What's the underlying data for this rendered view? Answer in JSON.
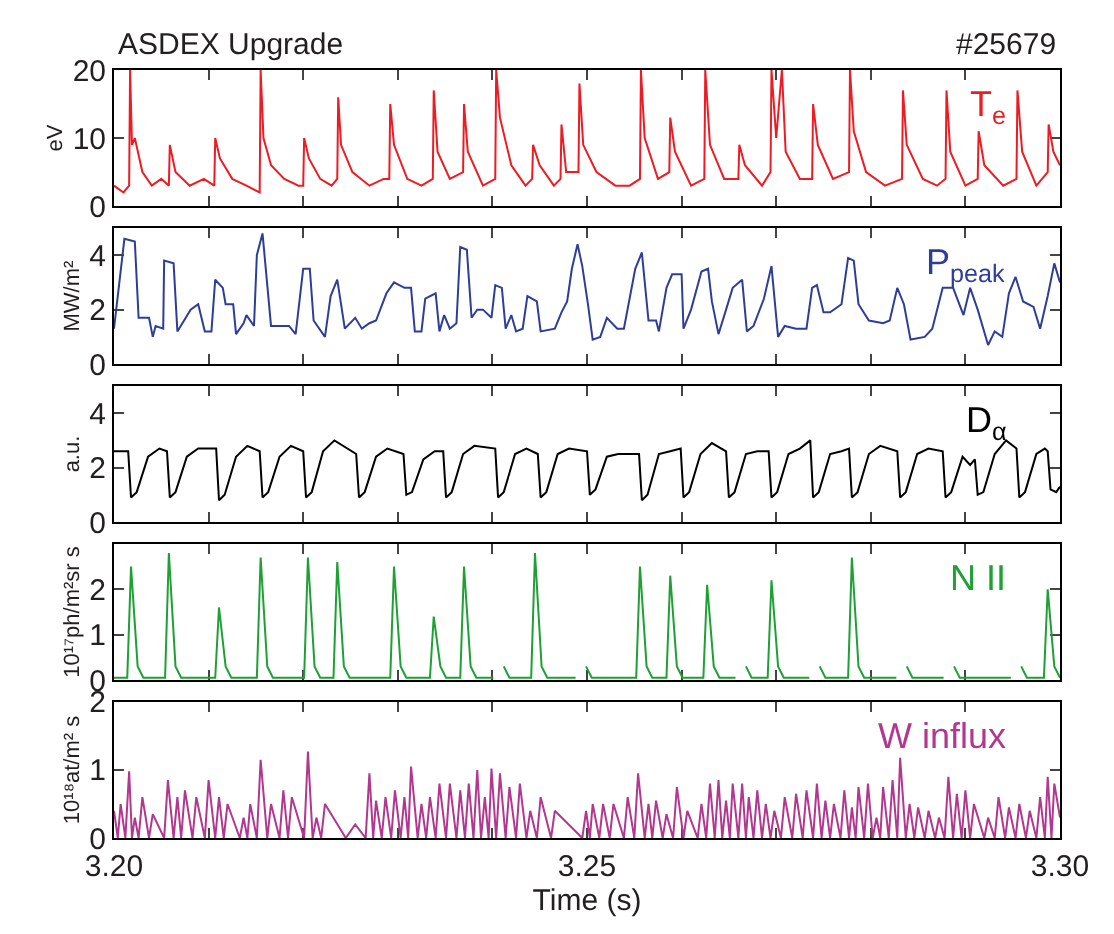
{
  "chart_data": [
    {
      "type": "line",
      "title": "ASDEX Upgrade",
      "annotations": [
        "#25679"
      ],
      "ylabel": "eV",
      "xlim": [
        3.2,
        3.3
      ],
      "ylim": [
        0,
        20
      ],
      "yticks": [
        0,
        10,
        20
      ],
      "tick_labels": "y",
      "xticks": [
        3.2,
        {
          "value": 3.21,
          "label": null
        },
        {
          "value": 3.22,
          "label": null
        },
        {
          "value": 3.23,
          "label": null
        },
        {
          "value": 3.24,
          "label": null
        },
        3.25,
        {
          "value": 3.26,
          "label": null
        },
        {
          "value": 3.27,
          "label": null
        },
        {
          "value": 3.28,
          "label": null
        },
        {
          "value": 3.29,
          "label": null
        },
        3.3
      ],
      "series": [
        {
          "name": "T$_{e}$",
          "color": "#ed1c24",
          "x": [
            3.2,
            3.201,
            3.2016,
            3.2017,
            3.2019,
            3.2022,
            3.203,
            3.204,
            3.205,
            3.2058,
            3.2059,
            3.2065,
            3.208,
            3.2095,
            3.2106,
            3.2107,
            3.2112,
            3.2125,
            3.214,
            3.2154,
            3.2155,
            3.2158,
            3.2166,
            3.218,
            3.2195,
            3.22,
            3.2201,
            3.2206,
            3.2218,
            3.223,
            3.2236,
            3.2237,
            3.224,
            3.2252,
            3.227,
            3.2285,
            3.2291,
            3.2292,
            3.2296,
            3.231,
            3.2325,
            3.2337,
            3.2338,
            3.2342,
            3.2355,
            3.2369,
            3.237,
            3.2374,
            3.239,
            3.2403,
            3.2404,
            3.2408,
            3.242,
            3.2435,
            3.2442,
            3.2443,
            3.245,
            3.2465,
            3.2472,
            3.2473,
            3.2478,
            3.2491,
            3.2492,
            3.2496,
            3.251,
            3.253,
            3.2545,
            3.2556,
            3.2557,
            3.2561,
            3.2575,
            3.2587,
            3.2588,
            3.2593,
            3.261,
            3.2624,
            3.2625,
            3.263,
            3.2645,
            3.266,
            3.2661,
            3.2667,
            3.2685,
            3.2694,
            3.2695,
            3.27,
            3.2706,
            3.271,
            3.2725,
            3.2738,
            3.2739,
            3.2744,
            3.276,
            3.2777,
            3.2778,
            3.2782,
            3.2795,
            3.2815,
            3.2833,
            3.2834,
            3.2838,
            3.2855,
            3.287,
            3.2879,
            3.288,
            3.2884,
            3.29,
            3.2913,
            3.2914,
            3.292,
            3.294,
            3.2954,
            3.2955,
            3.296,
            3.2975,
            3.2987,
            3.2988,
            3.2993,
            3.3
          ],
          "values": [
            3,
            2,
            3,
            20,
            9,
            10,
            5,
            3,
            4,
            3,
            9,
            5,
            3,
            4,
            3,
            10,
            7,
            4,
            3,
            2,
            20,
            10,
            6,
            4,
            3,
            3,
            10,
            7,
            4,
            3,
            4,
            16,
            9,
            5,
            3,
            4,
            4,
            15,
            9,
            4,
            3,
            4,
            17,
            8,
            4,
            5,
            15,
            8,
            3,
            4,
            20,
            13,
            6,
            3,
            4,
            9,
            6,
            3,
            4,
            12,
            5,
            5,
            18,
            9,
            5,
            3,
            3,
            4,
            20,
            10,
            4,
            5,
            13,
            8,
            3,
            4,
            20,
            9,
            4,
            4,
            9,
            6,
            3,
            5,
            20,
            10,
            20,
            8,
            4,
            4,
            15,
            9,
            4,
            5,
            20,
            11,
            5,
            3,
            4,
            17,
            9,
            4,
            3,
            4,
            17,
            8,
            3,
            4,
            11,
            6,
            3,
            4,
            17,
            8,
            3,
            5,
            12,
            8,
            6
          ]
        }
      ]
    },
    {
      "type": "line",
      "ylabel": "MW/m²",
      "xlim": [
        3.2,
        3.3
      ],
      "ylim": [
        0,
        5
      ],
      "yticks": [
        0,
        2,
        4
      ],
      "tick_labels": "y",
      "xticks": [
        3.2,
        {
          "value": 3.21,
          "label": null
        },
        {
          "value": 3.22,
          "label": null
        },
        {
          "value": 3.23,
          "label": null
        },
        {
          "value": 3.24,
          "label": null
        },
        3.25,
        {
          "value": 3.26,
          "label": null
        },
        {
          "value": 3.27,
          "label": null
        },
        {
          "value": 3.28,
          "label": null
        },
        {
          "value": 3.29,
          "label": null
        },
        3.3
      ],
      "series": [
        {
          "name": "P$_{peak}$",
          "color": "#2e3d98",
          "x": [
            3.2,
            3.2011,
            3.2022,
            3.2026,
            3.2037,
            3.2041,
            3.2044,
            3.2052,
            3.2053,
            3.2063,
            3.2067,
            3.2081,
            3.2089,
            3.2096,
            3.2103,
            3.2107,
            3.2115,
            3.2118,
            3.2126,
            3.2129,
            3.2137,
            3.214,
            3.2148,
            3.2151,
            3.2157,
            3.2166,
            3.2185,
            3.2192,
            3.22,
            3.2207,
            3.2211,
            3.2223,
            3.2229,
            3.2236,
            3.2244,
            3.2255,
            3.2262,
            3.227,
            3.2277,
            3.2288,
            3.2296,
            3.2307,
            3.2314,
            3.2318,
            3.2325,
            3.2329,
            3.234,
            3.2344,
            3.2349,
            3.2355,
            3.2362,
            3.2366,
            3.2373,
            3.2378,
            3.2384,
            3.239,
            3.2399,
            3.2403,
            3.241,
            3.2414,
            3.242,
            3.2425,
            3.2432,
            3.2437,
            3.2447,
            3.2451,
            3.2466,
            3.2473,
            3.2479,
            3.2484,
            3.249,
            3.2495,
            3.2501,
            3.2506,
            3.2514,
            3.2521,
            3.2532,
            3.2539,
            3.2551,
            3.2558,
            3.2565,
            3.2573,
            3.2576,
            3.2584,
            3.259,
            3.26,
            3.2602,
            3.261,
            3.2621,
            3.2628,
            3.2632,
            3.2639,
            3.2647,
            3.2654,
            3.2664,
            3.2669,
            3.2676,
            3.2687,
            3.2695,
            3.2702,
            3.2709,
            3.2721,
            3.2732,
            3.2738,
            3.2743,
            3.275,
            3.2757,
            3.2769,
            3.2776,
            3.2782,
            3.2787,
            3.2798,
            3.2813,
            3.282,
            3.2828,
            3.2835,
            3.2842,
            3.2857,
            3.2865,
            3.2876,
            3.2887,
            3.2898,
            3.2905,
            3.2913,
            3.2924,
            3.2931,
            3.2939,
            3.2946,
            3.2953,
            3.2961,
            3.2972,
            3.2979,
            3.2987,
            3.2994,
            3.3
          ],
          "values": [
            1.3,
            4.6,
            4.5,
            1.7,
            1.7,
            1.0,
            1.4,
            1.3,
            3.8,
            3.7,
            1.2,
            2.0,
            2.2,
            1.2,
            1.2,
            3.1,
            2.8,
            2.2,
            2.2,
            1.1,
            1.5,
            1.8,
            1.4,
            4.0,
            4.8,
            1.4,
            1.4,
            1.1,
            3.5,
            3.5,
            1.6,
            1.0,
            2.5,
            3.1,
            1.3,
            1.7,
            1.3,
            1.5,
            1.6,
            2.6,
            3.0,
            2.8,
            2.8,
            1.2,
            1.2,
            2.4,
            2.6,
            1.2,
            1.8,
            1.3,
            1.5,
            4.3,
            4.2,
            1.7,
            2.0,
            2.0,
            1.7,
            2.9,
            2.8,
            1.3,
            1.8,
            1.2,
            1.3,
            2.5,
            2.3,
            1.2,
            1.3,
            1.9,
            2.3,
            3.5,
            4.4,
            3.6,
            2.2,
            0.9,
            1.0,
            1.7,
            1.3,
            1.3,
            3.5,
            4.1,
            1.6,
            1.6,
            1.2,
            2.8,
            3.3,
            3.3,
            1.3,
            2.0,
            3.4,
            3.5,
            2.3,
            1.1,
            2.0,
            2.8,
            3.1,
            1.2,
            1.4,
            2.4,
            3.6,
            1.0,
            1.4,
            1.3,
            1.3,
            2.8,
            2.9,
            1.9,
            1.9,
            2.2,
            3.9,
            3.8,
            2.2,
            1.6,
            1.5,
            1.6,
            2.8,
            2.2,
            0.9,
            1.0,
            1.3,
            2.8,
            2.8,
            1.8,
            2.8,
            2.0,
            0.7,
            1.2,
            1.0,
            2.6,
            3.2,
            2.3,
            2.1,
            1.3,
            2.5,
            3.7,
            3.0
          ]
        }
      ]
    },
    {
      "type": "line",
      "ylabel": "a.u.",
      "xlim": [
        3.2,
        3.3
      ],
      "ylim": [
        0,
        5
      ],
      "yticks": [
        0,
        2,
        4
      ],
      "tick_labels": "y",
      "xticks": [
        3.2,
        {
          "value": 3.21,
          "label": null
        },
        {
          "value": 3.22,
          "label": null
        },
        {
          "value": 3.23,
          "label": null
        },
        {
          "value": 3.24,
          "label": null
        },
        3.25,
        {
          "value": 3.26,
          "label": null
        },
        {
          "value": 3.27,
          "label": null
        },
        {
          "value": 3.28,
          "label": null
        },
        {
          "value": 3.29,
          "label": null
        },
        3.3
      ],
      "series": [
        {
          "name": "D$_{α}$",
          "color": "#000000",
          "x": [
            3.2,
            3.2015,
            3.2018,
            3.2024,
            3.2036,
            3.2048,
            3.2056,
            3.2059,
            3.2065,
            3.2077,
            3.2089,
            3.2108,
            3.2111,
            3.2117,
            3.2129,
            3.2141,
            3.2154,
            3.2157,
            3.2163,
            3.2175,
            3.2187,
            3.22,
            3.2203,
            3.2209,
            3.2221,
            3.2233,
            3.2256,
            3.2259,
            3.2265,
            3.2277,
            3.2289,
            3.2306,
            3.2309,
            3.2315,
            3.2327,
            3.2339,
            3.2348,
            3.2351,
            3.2357,
            3.2369,
            3.2381,
            3.2403,
            3.2406,
            3.2412,
            3.2424,
            3.2436,
            3.2448,
            3.2451,
            3.2457,
            3.2469,
            3.2481,
            3.25,
            3.2503,
            3.2509,
            3.2521,
            3.2533,
            3.2555,
            3.2558,
            3.2564,
            3.2576,
            3.2588,
            3.2599,
            3.2602,
            3.2608,
            3.262,
            3.2632,
            3.2647,
            3.265,
            3.2656,
            3.2668,
            3.268,
            3.2692,
            3.2695,
            3.2701,
            3.2713,
            3.2725,
            3.2736,
            3.2739,
            3.2745,
            3.2757,
            3.2769,
            3.2777,
            3.278,
            3.2786,
            3.2798,
            3.281,
            3.2828,
            3.2831,
            3.2837,
            3.2849,
            3.2861,
            3.2876,
            3.2879,
            3.2885,
            3.2897,
            3.2905,
            3.291,
            3.2913,
            3.2919,
            3.2931,
            3.2943,
            3.2954,
            3.2957,
            3.2963,
            3.2975,
            3.2984,
            3.2987,
            3.299,
            3.2996,
            3.3
          ],
          "values": [
            2.6,
            2.6,
            0.9,
            1.1,
            2.4,
            2.7,
            2.6,
            0.9,
            1.1,
            2.4,
            2.7,
            2.7,
            0.8,
            1.0,
            2.4,
            2.8,
            2.6,
            0.9,
            1.1,
            2.4,
            2.8,
            2.6,
            0.9,
            1.1,
            2.6,
            3.0,
            2.5,
            0.9,
            1.1,
            2.4,
            2.7,
            2.5,
            1.0,
            1.1,
            2.3,
            2.6,
            2.6,
            0.9,
            1.1,
            2.5,
            2.8,
            2.7,
            0.9,
            1.1,
            2.5,
            2.7,
            2.5,
            0.9,
            1.1,
            2.5,
            2.7,
            2.6,
            1.0,
            1.2,
            2.4,
            2.5,
            2.5,
            0.8,
            1.0,
            2.5,
            2.6,
            2.7,
            0.9,
            1.1,
            2.5,
            2.9,
            2.6,
            0.9,
            1.1,
            2.5,
            2.6,
            2.6,
            0.9,
            1.1,
            2.5,
            2.7,
            3.0,
            0.9,
            1.1,
            2.5,
            2.6,
            2.7,
            0.9,
            1.1,
            2.5,
            2.8,
            2.6,
            0.9,
            1.1,
            2.5,
            2.7,
            2.6,
            0.9,
            1.1,
            2.4,
            2.1,
            2.3,
            1.0,
            1.1,
            2.5,
            3.0,
            2.7,
            0.9,
            1.1,
            2.5,
            2.7,
            2.6,
            1.2,
            1.1,
            1.3
          ]
        }
      ]
    },
    {
      "type": "line",
      "ylabel": "10¹⁷ph/m²sr s",
      "xlim": [
        3.2,
        3.3
      ],
      "ylim": [
        0,
        3
      ],
      "yticks": [
        0,
        1,
        2
      ],
      "tick_labels": "y",
      "xticks": [
        3.2,
        {
          "value": 3.21,
          "label": null
        },
        {
          "value": 3.22,
          "label": null
        },
        {
          "value": 3.23,
          "label": null
        },
        {
          "value": 3.24,
          "label": null
        },
        3.25,
        {
          "value": 3.26,
          "label": null
        },
        {
          "value": 3.27,
          "label": null
        },
        {
          "value": 3.28,
          "label": null
        },
        {
          "value": 3.29,
          "label": null
        },
        3.3
      ],
      "series": [
        {
          "name": "N II",
          "color": "#1fa035",
          "x": [
            3.2,
            3.2014,
            3.2018,
            3.2025,
            3.2031,
            3.2054,
            3.2058,
            3.2065,
            3.2071,
            3.2107,
            3.2111,
            3.2118,
            3.2124,
            3.2151,
            3.2155,
            3.2162,
            3.2168,
            3.2201,
            3.2205,
            3.2212,
            3.2218,
            3.2232,
            3.2236,
            3.2243,
            3.2249,
            3.2292,
            3.2296,
            3.2303,
            3.2309,
            3.2334,
            3.2338,
            3.2345,
            3.2351,
            3.2366,
            3.237,
            3.2377,
            3.2383,
            3.2401,
            3.2405,
            3.2412,
            3.2418,
            3.2441,
            3.2445,
            3.2452,
            3.2458,
            3.2488,
            3.2492,
            3.2499,
            3.2505,
            3.2552,
            3.2556,
            3.2563,
            3.2569,
            3.2584,
            3.2588,
            3.2595,
            3.2601,
            3.2623,
            3.2627,
            3.2634,
            3.264,
            3.2657,
            3.2661,
            3.2668,
            3.2674,
            3.2691,
            3.2695,
            3.2702,
            3.2708,
            3.2735,
            3.2739,
            3.2746,
            3.2752,
            3.2776,
            3.278,
            3.2787,
            3.2793,
            3.2827,
            3.2831,
            3.2838,
            3.2844,
            3.2877,
            3.2881,
            3.2888,
            3.2894,
            3.2948,
            3.2952,
            3.2959,
            3.2965,
            3.2983,
            3.2987,
            3.2994,
            3.3
          ],
          "values": [
            0.05,
            0.05,
            2.5,
            0.3,
            0.05,
            0.05,
            2.8,
            0.3,
            0.05,
            0.05,
            1.6,
            0.3,
            0.05,
            0.05,
            2.7,
            0.3,
            0.05,
            0.05,
            2.7,
            0.3,
            0.05,
            0.05,
            2.6,
            0.3,
            0.05,
            0.05,
            2.5,
            0.3,
            0.05,
            0.05,
            1.4,
            0.3,
            0.05,
            0.05,
            2.5,
            0.3,
            0.05,
            0.05,
            null,
            0.3,
            0.05,
            0.05,
            2.8,
            0.3,
            0.05,
            0.05,
            null,
            0.3,
            0.05,
            0.05,
            2.5,
            0.3,
            0.05,
            0.05,
            2.3,
            0.3,
            0.05,
            0.05,
            2.1,
            0.3,
            0.05,
            0.05,
            null,
            0.3,
            0.05,
            0.05,
            2.2,
            0.3,
            0.05,
            0.05,
            null,
            0.3,
            0.05,
            0.05,
            2.7,
            0.3,
            0.05,
            0.05,
            null,
            0.3,
            0.05,
            0.05,
            null,
            0.3,
            0.05,
            0.05,
            null,
            0.3,
            0.05,
            0.05,
            2.0,
            0.3,
            0.05
          ]
        }
      ]
    },
    {
      "type": "line",
      "xlabel": "Time (s)",
      "ylabel": "10¹⁸at/m² s",
      "xlim": [
        3.2,
        3.3
      ],
      "ylim": [
        0,
        2
      ],
      "yticks": [
        0,
        1,
        2
      ],
      "xticks": [
        {
          "value": 3.2,
          "label": "3.20"
        },
        {
          "value": 3.21,
          "label": null
        },
        {
          "value": 3.22,
          "label": null
        },
        {
          "value": 3.23,
          "label": null
        },
        {
          "value": 3.24,
          "label": null
        },
        3.25,
        {
          "value": 3.26,
          "label": null
        },
        {
          "value": 3.27,
          "label": null
        },
        {
          "value": 3.28,
          "label": null
        },
        {
          "value": 3.29,
          "label": null
        },
        {
          "value": 3.3,
          "label": "3.30"
        }
      ],
      "series": [
        {
          "name": "W influx",
          "color": "#b2378f",
          "x": [
            3.2,
            3.2004,
            3.2007,
            3.2012,
            3.2016,
            3.2019,
            3.2022,
            3.2026,
            3.203,
            3.2037,
            3.2041,
            3.2053,
            3.2057,
            3.2063,
            3.2067,
            3.2071,
            3.2075,
            3.2083,
            3.2087,
            3.2096,
            3.21,
            3.2107,
            3.2111,
            3.2116,
            3.212,
            3.2133,
            3.2137,
            3.2141,
            3.2144,
            3.2151,
            3.2155,
            3.2162,
            3.2166,
            3.2175,
            3.2179,
            3.2184,
            3.2188,
            3.2201,
            3.2205,
            3.221,
            3.2214,
            3.2219,
            3.2223,
            3.2245,
            3.2255,
            3.2266,
            3.227,
            3.2274,
            3.2277,
            3.2283,
            3.2287,
            3.2293,
            3.2297,
            3.2303,
            3.2307,
            3.2311,
            3.2314,
            3.2321,
            3.2325,
            3.233,
            3.2334,
            3.234,
            3.2344,
            3.2351,
            3.2355,
            3.2362,
            3.2366,
            3.2371,
            3.2375,
            3.238,
            3.2384,
            3.2388,
            3.2392,
            3.2396,
            3.2399,
            3.2404,
            3.2408,
            3.2414,
            3.2418,
            3.2425,
            3.2429,
            3.2436,
            3.244,
            3.2447,
            3.2451,
            3.2462,
            3.2466,
            3.2495,
            3.2499,
            3.2503,
            3.2506,
            3.2513,
            3.2517,
            3.2524,
            3.2528,
            3.2539,
            3.2543,
            3.255,
            3.2554,
            3.2561,
            3.2565,
            3.2569,
            3.2573,
            3.258,
            3.2584,
            3.2591,
            3.2595,
            3.2602,
            3.2606,
            3.2617,
            3.2621,
            3.2626,
            3.263,
            3.2635,
            3.2639,
            3.2643,
            3.2647,
            3.2651,
            3.2654,
            3.266,
            3.2664,
            3.2668,
            3.2671,
            3.2676,
            3.268,
            3.2685,
            3.2689,
            3.2694,
            3.2698,
            3.2705,
            3.2709,
            3.2717,
            3.2721,
            3.2728,
            3.2732,
            3.2739,
            3.2743,
            3.2748,
            3.2752,
            3.2757,
            3.2761,
            3.2768,
            3.2772,
            3.2777,
            3.278,
            3.2784,
            3.2787,
            3.2793,
            3.2797,
            3.2802,
            3.2806,
            3.281,
            3.2813,
            3.2819,
            3.2823,
            3.2828,
            3.2831,
            3.2837,
            3.2841,
            3.2846,
            3.285,
            3.2857,
            3.2861,
            3.2868,
            3.2872,
            3.2878,
            3.2882,
            3.2887,
            3.2891,
            3.2896,
            3.29,
            3.2905,
            3.2909,
            3.292,
            3.2924,
            3.2931,
            3.2935,
            3.2942,
            3.2946,
            3.2953,
            3.2957,
            3.2964,
            3.2968,
            3.2975,
            3.2979,
            3.2984,
            3.2987,
            3.2991,
            3.2994,
            3.3
          ],
          "values": [
            0.4,
            0,
            0.5,
            0,
            0.98,
            0,
            0.3,
            0,
            0.6,
            0,
            0.35,
            0,
            0.85,
            0,
            0.6,
            0,
            0.7,
            0,
            0.6,
            0,
            0.85,
            0,
            0.6,
            0,
            0.5,
            0,
            0.3,
            0,
            0.5,
            0,
            1.15,
            0,
            0.5,
            0,
            0.7,
            0,
            0.6,
            0,
            1.27,
            0,
            0.3,
            0,
            0.5,
            0,
            0.2,
            0,
            0.95,
            0,
            0.55,
            0,
            0.6,
            0,
            0.7,
            0,
            0.6,
            0,
            1.05,
            0,
            0.5,
            0,
            0.6,
            0,
            0.8,
            0,
            0.8,
            0,
            0.7,
            0,
            0.8,
            0,
            1.0,
            0,
            0.6,
            0,
            1.02,
            0,
            0.95,
            0,
            0.75,
            0,
            0.8,
            0,
            0.4,
            0,
            0.6,
            0,
            0.4,
            0,
            0.4,
            0,
            0.5,
            0,
            0.5,
            0,
            0.5,
            0,
            0.6,
            0,
            0.95,
            0,
            0.5,
            0,
            0.55,
            0,
            0.35,
            0,
            0.75,
            0,
            0.4,
            0,
            0.5,
            0,
            0.8,
            0,
            0.85,
            0,
            0.55,
            0,
            0.8,
            0,
            0.8,
            0,
            0.6,
            0,
            0.7,
            0,
            0.5,
            0,
            0.4,
            0,
            0.6,
            0,
            0.65,
            0,
            0.7,
            0,
            0.8,
            0,
            0.55,
            0,
            0.5,
            0,
            0.7,
            0,
            0.45,
            0,
            0.75,
            0,
            0.8,
            0,
            0.3,
            0,
            0.75,
            0,
            0.85,
            0,
            1.18,
            0,
            0.5,
            0,
            0.45,
            0,
            0.4,
            0,
            0.3,
            0,
            0.9,
            0,
            0.65,
            0,
            0.7,
            0,
            0.5,
            0,
            0.3,
            0,
            0.6,
            0,
            0.45,
            0,
            0.5,
            0,
            0.4,
            0,
            0.6,
            0,
            0.9,
            0,
            0.8,
            0.3
          ]
        }
      ]
    }
  ]
}
